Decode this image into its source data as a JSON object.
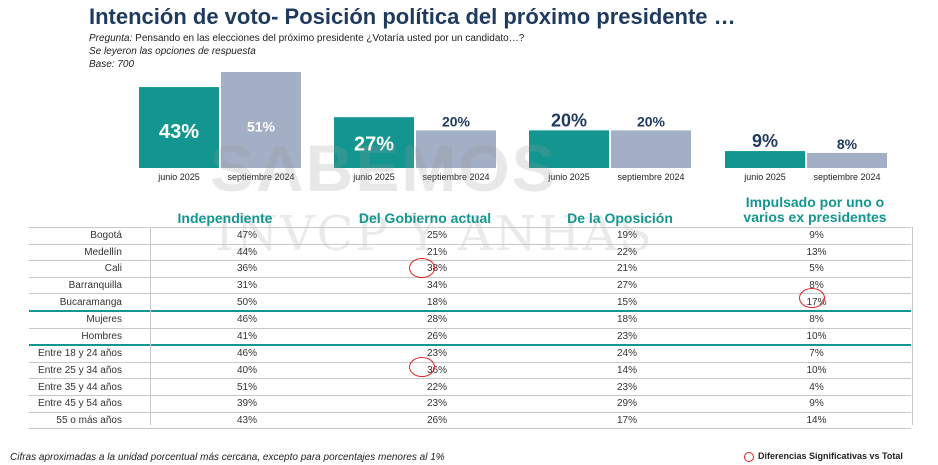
{
  "title": "Intención de voto- Posición política del próximo presidente …",
  "question_label": "Pregunta:",
  "question_text": " Pensando en las elecciones del próximo presidente ¿Votaría usted por un candidato…?",
  "note_options": "Se leyeron las opciones de respuesta",
  "base": "Base: 700",
  "watermark_main": "SABEMOS",
  "watermark_sub": "INVCP Y ANHAS",
  "chart_data": {
    "type": "bar",
    "categories": [
      "Independiente",
      "Del Gobierno actual",
      "De la Oposición",
      "Impulsado por uno o varios ex presidentes"
    ],
    "series": [
      {
        "name": "junio 2025",
        "values": [
          43,
          27,
          20,
          9
        ],
        "labels": [
          "43%",
          "27%",
          "20%",
          "9%"
        ]
      },
      {
        "name": "septiembre 2024",
        "values": [
          51,
          20,
          20,
          8
        ],
        "labels": [
          "51%",
          "20%",
          "20%",
          "8%"
        ]
      }
    ],
    "colors": [
      "#139690",
      "#a3afc4"
    ],
    "ylim": [
      0,
      51
    ]
  },
  "table": {
    "headers": [
      "Independiente",
      "Del Gobierno actual",
      "De la Oposición",
      "Impulsado por uno o varios ex presidentes"
    ],
    "rows": [
      {
        "label": "Bogotá",
        "values": [
          "47%",
          "25%",
          "19%",
          "9%"
        ]
      },
      {
        "label": "Medellín",
        "values": [
          "44%",
          "21%",
          "22%",
          "13%"
        ]
      },
      {
        "label": "Cali",
        "values": [
          "36%",
          "38%",
          "21%",
          "5%"
        ]
      },
      {
        "label": "Barranquilla",
        "values": [
          "31%",
          "34%",
          "27%",
          "8%"
        ]
      },
      {
        "label": "Bucaramanga",
        "values": [
          "50%",
          "18%",
          "15%",
          "17%"
        ]
      },
      {
        "label": "Mujeres",
        "values": [
          "46%",
          "28%",
          "18%",
          "8%"
        ]
      },
      {
        "label": "Hombres",
        "values": [
          "41%",
          "26%",
          "23%",
          "10%"
        ]
      },
      {
        "label": "Entre 18 y 24 años",
        "values": [
          "46%",
          "23%",
          "24%",
          "7%"
        ]
      },
      {
        "label": "Entre 25 y 34 años",
        "values": [
          "40%",
          "36%",
          "14%",
          "10%"
        ]
      },
      {
        "label": "Entre 35 y 44 años",
        "values": [
          "51%",
          "22%",
          "23%",
          "4%"
        ]
      },
      {
        "label": "Entre 45 y 54 años",
        "values": [
          "39%",
          "23%",
          "29%",
          "9%"
        ]
      },
      {
        "label": "55 o más años",
        "values": [
          "43%",
          "26%",
          "17%",
          "14%"
        ]
      }
    ]
  },
  "footnote": "Cifras aproximadas a la unidad porcentual más cercana, excepto para porcentajes menores al 1%",
  "legend": "Diferencias Significativas vs Total"
}
